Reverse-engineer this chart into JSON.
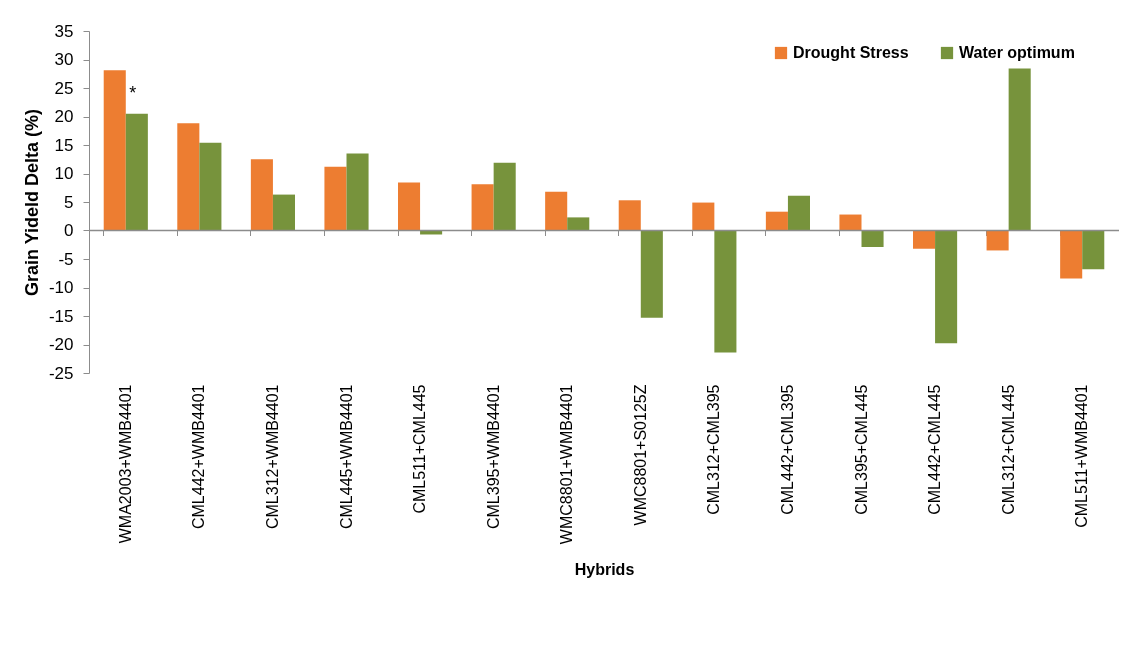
{
  "chart_data": {
    "type": "bar",
    "xlabel": "Hybrids",
    "ylabel": "Grain Yideld Delta (%)",
    "categories": [
      "WMA2003+WMB4401",
      "CML442+WMB4401",
      "CML312+WMB4401",
      "CML445+WMB4401",
      "CML511+CML445",
      "CML395+WMB4401",
      "WMC8801+WMB4401",
      "WMC8801+S0125Z",
      "CML312+CML395",
      "CML442+CML395",
      "CML395+CML445",
      "CML442+CML445",
      "CML312+CML445",
      "CML511+WMB4401"
    ],
    "series": [
      {
        "name": "Drought Stress",
        "color": "#ed7d31",
        "values": [
          28.1,
          18.8,
          12.5,
          11.2,
          8.4,
          8.1,
          6.8,
          5.3,
          4.9,
          3.3,
          2.8,
          -3.2,
          -3.5,
          -8.4
        ]
      },
      {
        "name": "Water optimum",
        "color": "#77933c",
        "values": [
          20.5,
          15.4,
          6.3,
          13.5,
          -0.7,
          11.9,
          2.3,
          -15.3,
          -21.4,
          6.1,
          -2.9,
          -19.8,
          28.4,
          -6.8
        ]
      }
    ],
    "ylim": [
      -25,
      35
    ],
    "yticks": [
      -25,
      -20,
      -15,
      -10,
      -5,
      0,
      5,
      10,
      15,
      20,
      25,
      30,
      35
    ],
    "grid": false,
    "legend": "top right",
    "ref_lines": [
      {
        "axis": "y",
        "value": 0,
        "color": "#8c8c8c"
      }
    ],
    "annotations": [
      {
        "text": "*",
        "x": "WMA2003+WMB4401",
        "y": 24
      }
    ]
  }
}
